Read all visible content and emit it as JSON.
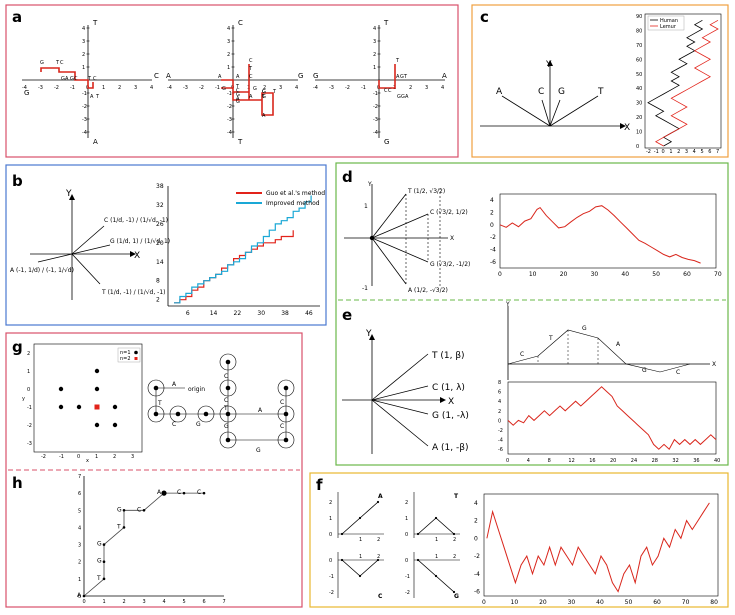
{
  "panels": {
    "a": {
      "label": "a",
      "plots": [
        {
          "axis_letters": {
            "top": "T",
            "bottom": "A",
            "left": "G",
            "right": "C"
          },
          "xticks": [
            "-4",
            "-3",
            "-2",
            "-1",
            "0",
            "1",
            "2",
            "3",
            "4"
          ],
          "yticks": [
            "4",
            "3",
            "2",
            "1",
            "-1",
            "-2",
            "-3",
            "-4"
          ],
          "path_labels": [
            "G",
            "T",
            "C",
            "G",
            "A",
            "G",
            "C",
            "T",
            "C",
            "A",
            "T"
          ]
        },
        {
          "axis_letters": {
            "top": "C",
            "bottom": "T",
            "left": "A",
            "right": "G"
          },
          "xticks": [
            "-4",
            "-3",
            "-2",
            "-1",
            "0",
            "1",
            "2",
            "3",
            "4"
          ],
          "yticks": [
            "4",
            "3",
            "2",
            "1",
            "-1",
            "-2",
            "-3",
            "-4"
          ],
          "path_labels": [
            "C",
            "T",
            "A",
            "A",
            "C",
            "G",
            "G",
            "A",
            "T",
            "G",
            "C",
            "T",
            "G",
            "A",
            "A",
            "C",
            "G",
            "T",
            "G"
          ]
        },
        {
          "axis_letters": {
            "top": "T",
            "bottom": "G",
            "left": "G",
            "right": "A"
          },
          "xticks": [
            "-4",
            "-3",
            "-2",
            "-1",
            "0",
            "1",
            "2",
            "3",
            "4"
          ],
          "yticks": [
            "4",
            "3",
            "2",
            "1",
            "-1",
            "-2",
            "-3",
            "-4"
          ],
          "path_labels": [
            "T",
            "A",
            "G",
            "T",
            "C",
            "C",
            "G",
            "G",
            "A"
          ]
        }
      ]
    },
    "b": {
      "label": "b",
      "vectors": {
        "x": "X",
        "y": "Y",
        "c": "C (1/d, -1) / (1/√d, -1)",
        "g": "G (1/d, 1) / (1/√d, 1)",
        "a": "A (-1, 1/d) / (-1, 1/√d)",
        "t": "T (1/d, -1) / (1/√d, -1)"
      },
      "chart_data": {
        "type": "line",
        "legend_position": "top-right",
        "series": [
          {
            "name": "Guo et al.'s method",
            "color": "#e2231a",
            "x": [
              1,
              3,
              5,
              7,
              9,
              11,
              13,
              15,
              17,
              19,
              21,
              23,
              25,
              27,
              29,
              31,
              33,
              35,
              37,
              39,
              41
            ],
            "y": [
              1,
              2,
              3,
              5,
              6,
              8,
              9,
              10,
              12,
              13,
              15,
              16,
              17,
              18,
              19,
              20,
              20,
              21,
              22,
              22,
              24
            ]
          },
          {
            "name": "Improved method",
            "color": "#1aa8d6",
            "x": [
              1,
              3,
              5,
              7,
              9,
              11,
              13,
              15,
              17,
              19,
              21,
              23,
              25,
              27,
              29,
              31,
              33,
              35,
              37,
              39,
              41,
              43,
              45,
              47
            ],
            "y": [
              1,
              3,
              4,
              6,
              7,
              8,
              9,
              10,
              11,
              13,
              14,
              15,
              17,
              19,
              20,
              22,
              24,
              26,
              27,
              28,
              30,
              31,
              33,
              35
            ]
          }
        ],
        "xticks": [
          "6",
          "14",
          "22",
          "30",
          "38",
          "46"
        ],
        "yticks": [
          "2",
          "8",
          "14",
          "20",
          "26",
          "32",
          "38"
        ],
        "xlim": [
          -1,
          50
        ],
        "ylim": [
          0,
          38
        ]
      }
    },
    "c": {
      "label": "c",
      "vectors": {
        "y": "Y",
        "x": "X",
        "a": "A",
        "c": "C",
        "g": "G",
        "t": "T"
      },
      "chart_data": {
        "type": "line",
        "legend_position": "top-left",
        "series": [
          {
            "name": "Human",
            "color": "#000000",
            "y": [
              0,
              3,
              6,
              9,
              12,
              15,
              18,
              21,
              24,
              27,
              30,
              33,
              36,
              39,
              42,
              45,
              48,
              51,
              54,
              57,
              60,
              63,
              66,
              69,
              72,
              75,
              78,
              81,
              84,
              87
            ],
            "x": [
              0,
              1,
              0,
              1,
              2,
              1,
              0,
              -1,
              0,
              -1,
              -2,
              -1,
              0,
              1,
              2,
              1,
              2,
              1,
              2,
              3,
              2,
              3,
              4,
              3,
              4,
              3,
              4,
              5,
              4,
              5
            ]
          },
          {
            "name": "Lemur",
            "color": "#e2231a",
            "y": [
              0,
              3,
              6,
              9,
              12,
              15,
              18,
              21,
              24,
              27,
              30,
              33,
              36,
              39,
              42,
              45,
              48,
              51,
              54,
              57,
              60,
              63,
              66,
              69,
              72,
              75,
              78,
              81,
              84,
              87
            ],
            "x": [
              0,
              -1,
              0,
              1,
              2,
              3,
              2,
              1,
              2,
              3,
              2,
              1,
              2,
              3,
              4,
              5,
              6,
              5,
              4,
              5,
              6,
              5,
              4,
              5,
              6,
              5,
              6,
              7,
              6,
              7
            ]
          }
        ],
        "xticks": [
          "-2",
          "-1",
          "0",
          "1",
          "2",
          "3",
          "4",
          "5",
          "6",
          "7"
        ],
        "yticks": [
          "0",
          "10",
          "20",
          "30",
          "40",
          "50",
          "60",
          "70",
          "80",
          "90"
        ],
        "xlim": [
          -2,
          7
        ],
        "ylim": [
          0,
          90
        ]
      }
    },
    "d": {
      "label": "d",
      "vectors": {
        "y": "Y",
        "x": "X",
        "one": "1",
        "neg_one": "-1",
        "t": "T (1/2, √3/2)",
        "c": "C (√3/2, 1/2)",
        "g": "G (√3/2, -1/2)",
        "a": "A (1/2, -√3/2)"
      },
      "chart_data": {
        "type": "line",
        "color": "#d9261c",
        "xticks": [
          "0",
          "10",
          "20",
          "30",
          "40",
          "50",
          "60",
          "70"
        ],
        "yticks": [
          "4",
          "2",
          "0",
          "-2",
          "-4",
          "-6"
        ],
        "xlim": [
          0,
          70
        ],
        "ylim": [
          -7,
          5
        ],
        "x": [
          0,
          2,
          4,
          6,
          8,
          10,
          12,
          13,
          15,
          17,
          19,
          21,
          23,
          25,
          27,
          29,
          31,
          33,
          35,
          37,
          39,
          41,
          43,
          45,
          47,
          49,
          51,
          53,
          55,
          57,
          59,
          61,
          63,
          65
        ],
        "y": [
          0,
          -0.4,
          0.3,
          -0.3,
          0.6,
          1,
          2.5,
          2.8,
          1.5,
          0.5,
          -0.5,
          -0.3,
          0.5,
          1.2,
          1.8,
          2.2,
          2.9,
          3.1,
          2.4,
          1.5,
          0.5,
          -0.5,
          -1.5,
          -2.5,
          -3,
          -3.6,
          -4.2,
          -4.8,
          -5.2,
          -4.8,
          -5.3,
          -5.6,
          -5.8,
          -6.2
        ]
      }
    },
    "e": {
      "label": "e",
      "vectors": {
        "y": "Y",
        "x": "X",
        "t": "T   (1, β)",
        "c": "C   (1, λ)",
        "g": "G   (1, -λ)",
        "a": "A   (1, -β)"
      },
      "schematic": {
        "x_label": "X",
        "y_label": "Y",
        "segments": [
          "C",
          "T",
          "G",
          "A",
          "G",
          "C"
        ]
      },
      "chart_data": {
        "type": "line",
        "color": "#d9261c",
        "xticks": [
          "0",
          "4",
          "8",
          "12",
          "16",
          "20",
          "24",
          "28",
          "32",
          "36",
          "40"
        ],
        "yticks": [
          "8",
          "6",
          "4",
          "2",
          "0",
          "-2",
          "-4",
          "-6"
        ],
        "xlim": [
          0,
          40
        ],
        "ylim": [
          -7,
          8
        ],
        "x": [
          0,
          1,
          2,
          3,
          4,
          5,
          6,
          7,
          8,
          9,
          10,
          11,
          12,
          13,
          14,
          15,
          16,
          17,
          18,
          19,
          20,
          21,
          22,
          23,
          24,
          25,
          26,
          27,
          28,
          29,
          30,
          31,
          32,
          33,
          34,
          35,
          36,
          37,
          38,
          39,
          40
        ],
        "y": [
          0,
          -1,
          0,
          -0.5,
          1,
          0,
          1,
          2,
          1,
          2,
          3,
          2,
          3,
          4,
          3,
          4,
          5,
          6,
          7,
          6,
          5,
          3,
          2,
          1,
          0,
          -1,
          -2,
          -3,
          -5,
          -6,
          -5,
          -6,
          -4,
          -5,
          -4,
          -5,
          -4,
          -5,
          -4,
          -3,
          -4
        ]
      }
    },
    "f": {
      "label": "f",
      "minis": [
        {
          "letter": "A",
          "yticks": [
            "2",
            "1",
            "0"
          ],
          "xticks": [
            "1",
            "2"
          ]
        },
        {
          "letter": "T",
          "yticks": [
            "2",
            "1",
            "0"
          ],
          "xticks": [
            "1",
            "2"
          ]
        },
        {
          "letter": "C",
          "yticks": [
            "0",
            "-1",
            "-2"
          ],
          "xticks": [
            "1",
            "2"
          ]
        },
        {
          "letter": "G",
          "yticks": [
            "0",
            "-1",
            "-2"
          ],
          "xticks": [
            "1",
            "2"
          ]
        }
      ],
      "chart_data": {
        "type": "line",
        "color": "#d9261c",
        "xticks": [
          "0",
          "10",
          "20",
          "30",
          "40",
          "50",
          "60",
          "70",
          "80"
        ],
        "yticks": [
          "4",
          "2",
          "0",
          "-2",
          "-4",
          "-6"
        ],
        "xlim": [
          0,
          82
        ],
        "ylim": [
          -6.5,
          5
        ],
        "x": [
          1,
          3,
          5,
          7,
          9,
          11,
          13,
          15,
          17,
          19,
          21,
          23,
          25,
          27,
          29,
          31,
          33,
          35,
          37,
          39,
          41,
          43,
          45,
          47,
          49,
          51,
          53,
          55,
          57,
          59,
          61,
          63,
          65,
          67,
          69,
          71,
          73,
          75,
          77,
          79
        ],
        "y": [
          0,
          3,
          1,
          -1,
          -3,
          -5,
          -3,
          -2,
          -4,
          -2,
          -3,
          -1,
          -3,
          -1,
          -2,
          -3,
          -1,
          -2,
          -3,
          -4,
          -2,
          -3,
          -5,
          -6,
          -4,
          -3,
          -5,
          -2,
          -1,
          -3,
          -2,
          0,
          -1,
          1,
          0,
          2,
          1,
          2,
          3,
          4
        ]
      }
    },
    "g": {
      "label": "g",
      "legend": [
        "n=1",
        "n=2"
      ],
      "xlabel": "x",
      "ylabel": "y",
      "xticks": [
        "-2",
        "-1",
        "0",
        "1",
        "2",
        "3"
      ],
      "yticks": [
        "2",
        "1",
        "0",
        "-1",
        "-2",
        "-3"
      ],
      "chart_data": {
        "type": "scatter",
        "series": [
          {
            "name": "n=1",
            "color": "#000000",
            "x": [
              -1,
              1,
              -1,
              0,
              1,
              2,
              1,
              2,
              1
            ],
            "y": [
              0,
              1,
              -1,
              -1,
              -1,
              -1,
              -2,
              -2,
              0
            ]
          },
          {
            "name": "n=2",
            "color": "#e2231a",
            "x": [
              1
            ],
            "y": [
              -1
            ]
          }
        ]
      },
      "tree": {
        "origin": "origin",
        "letters": [
          "A",
          "T",
          "C",
          "C",
          "C",
          "G",
          "G",
          "A",
          "T",
          "C",
          "G",
          "C"
        ]
      }
    },
    "h": {
      "label": "h",
      "xticks": [
        "0",
        "1",
        "2",
        "3",
        "4",
        "5",
        "6",
        "7"
      ],
      "yticks": [
        "0",
        "1",
        "2",
        "3",
        "4",
        "5",
        "6",
        "7"
      ],
      "path_labels": [
        "A",
        "T",
        "G",
        "G",
        "T",
        "G",
        "C",
        "A",
        "C",
        "C"
      ],
      "chart_data": {
        "type": "line",
        "x": [
          0,
          1,
          1,
          1,
          2,
          2,
          3,
          4,
          5,
          6
        ],
        "y": [
          0,
          1,
          2,
          3,
          4,
          5,
          5,
          6,
          6,
          6
        ]
      }
    }
  }
}
